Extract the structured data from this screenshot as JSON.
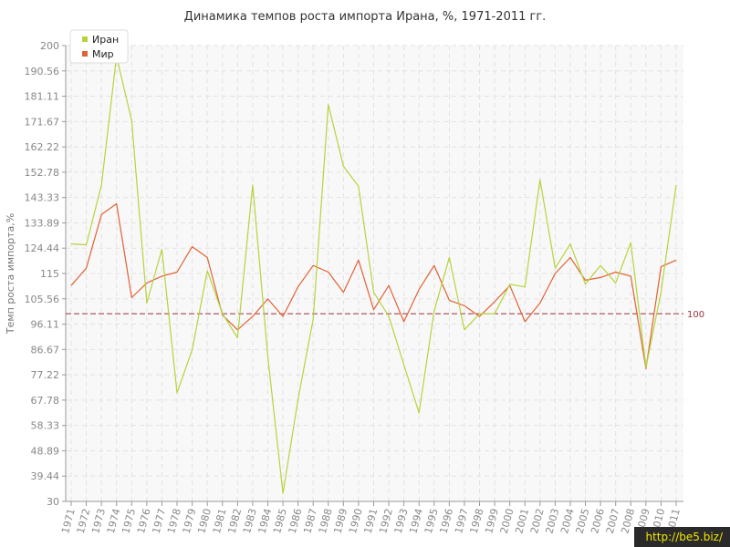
{
  "chart_data": {
    "type": "line",
    "title": "Динамика темпов роста импорта Ирана, %, 1971-2011 гг.",
    "ylabel": "Темп роста импорта,%",
    "xlabel": "",
    "ylim": [
      30,
      200
    ],
    "yticks": [
      "200",
      "190.56",
      "181.11",
      "171.67",
      "162.22",
      "152.78",
      "143.33",
      "133.89",
      "124.44",
      "115",
      "105.56",
      "96.11",
      "86.67",
      "77.22",
      "67.78",
      "58.33",
      "48.89",
      "39.44",
      "30"
    ],
    "categories": [
      "1971",
      "1972",
      "1973",
      "1974",
      "1975",
      "1976",
      "1977",
      "1978",
      "1979",
      "1980",
      "1981",
      "1982",
      "1983",
      "1984",
      "1985",
      "1986",
      "1987",
      "1988",
      "1989",
      "1990",
      "1991",
      "1992",
      "1993",
      "1994",
      "1995",
      "1996",
      "1997",
      "1998",
      "1999",
      "2000",
      "2001",
      "2002",
      "2003",
      "2004",
      "2005",
      "2006",
      "2007",
      "2008",
      "2009",
      "2010",
      "2011"
    ],
    "series": [
      {
        "name": "Иран",
        "color": "#b5d43c",
        "values": [
          126,
          125.7,
          148,
          196,
          172,
          104,
          124,
          70.5,
          86.5,
          116,
          100,
          91,
          148,
          84,
          33,
          68,
          98,
          178,
          155,
          147.5,
          108,
          99,
          81,
          63,
          101,
          121,
          94,
          100,
          100,
          111,
          110,
          150,
          117,
          126,
          111,
          118,
          111.5,
          126.5,
          80,
          108,
          148
        ]
      },
      {
        "name": "Мир",
        "color": "#e06235",
        "values": [
          110.5,
          117,
          137,
          141,
          106,
          111.5,
          114,
          115.5,
          125,
          121,
          99.5,
          94,
          99,
          105.5,
          99,
          110,
          118,
          115.5,
          108,
          120,
          101.5,
          110.5,
          97,
          109,
          118,
          105,
          103,
          99,
          104.5,
          110.5,
          97,
          104,
          115,
          121,
          112.5,
          113.5,
          115.5,
          114,
          79.5,
          117.5,
          120
        ]
      }
    ],
    "reference_line": {
      "value": 100,
      "label": "100",
      "color": "#9b3038"
    },
    "legend_position": "top-left",
    "grid": true
  },
  "watermark": "http://be5.biz/"
}
